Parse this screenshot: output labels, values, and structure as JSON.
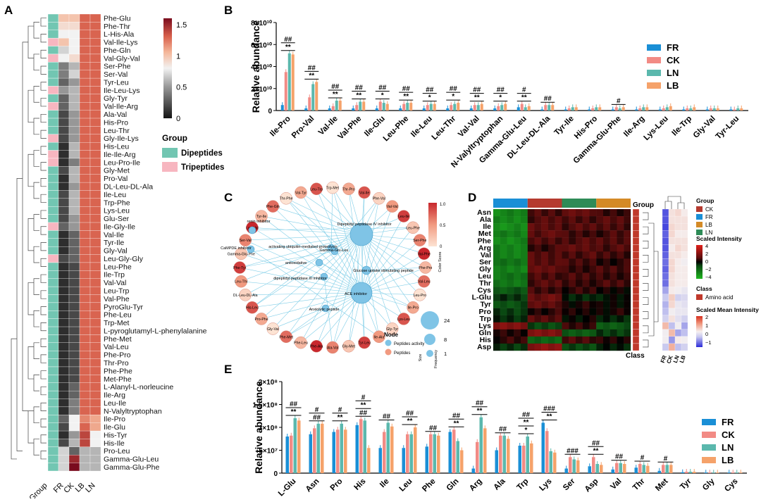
{
  "colors": {
    "FR": "#1a8fd6",
    "CK": "#f28b85",
    "LN": "#5bb8ad",
    "LB": "#f5a26a",
    "dipeptide": "#72c6b2",
    "tripeptide": "#f7b6c0",
    "amino_acid": "#c0392b"
  },
  "panelA": {
    "label": "A",
    "columns": [
      "Group",
      "FR",
      "CK",
      "LB",
      "LN"
    ],
    "rows": [
      "Phe-Glu",
      "Phe-Thr",
      "L-His-Ala",
      "Val-Ile-Lys",
      "Phe-Gln",
      "Val-Gly-Val",
      "Ser-Phe",
      "Ser-Val",
      "Tyr-Leu",
      "Ile-Leu-Lys",
      "Gly-Tyr",
      "Val-Ile-Arg",
      "Ala-Val",
      "His-Pro",
      "Leu-Thr",
      "Gly-Ile-Lys",
      "His-Leu",
      "Ile-Ile-Arg",
      "Leu-Pro-Ile",
      "Gly-Met",
      "Pro-Val",
      "DL-Leu-DL-Ala",
      "Ile-Leu",
      "Trp-Phe",
      "Lys-Leu",
      "Glu-Ser",
      "Ile-Gly-Ile",
      "Val-Ile",
      "Tyr-Ile",
      "Gly-Val",
      "Leu-Gly-Gly",
      "Leu-Phe",
      "Ile-Trp",
      "Val-Val",
      "Leu-Trp",
      "Val-Phe",
      "PyroGlu-Tyr",
      "Phe-Leu",
      "Trp-Met",
      "L-pyroglutamyl-L-phenylalanine",
      "Phe-Met",
      "Val-Leu",
      "Phe-Pro",
      "Thr-Pro",
      "Phe-Phe",
      "Met-Phe",
      "L-Alanyl-L-norleucine",
      "Ile-Arg",
      "Leu-Ile",
      "N-Valyltryptophan",
      "Ile-Pro",
      "Ile-Glu",
      "His-Tyr",
      "His-Ile",
      "Pro-Leu",
      "Gamma-Glu-Leu",
      "Gamma-Glu-Phe"
    ],
    "groups": [
      "D",
      "D",
      "D",
      "T",
      "D",
      "T",
      "D",
      "D",
      "D",
      "T",
      "D",
      "T",
      "D",
      "D",
      "D",
      "T",
      "D",
      "T",
      "T",
      "D",
      "D",
      "D",
      "D",
      "D",
      "D",
      "D",
      "T",
      "D",
      "D",
      "D",
      "T",
      "D",
      "D",
      "D",
      "D",
      "D",
      "D",
      "D",
      "D",
      "D",
      "D",
      "D",
      "D",
      "D",
      "D",
      "D",
      "D",
      "D",
      "D",
      "D",
      "D",
      "D",
      "D",
      "D",
      "D",
      "D",
      "D"
    ],
    "values": [
      [
        1.0,
        1.0,
        1.3,
        1.3
      ],
      [
        0.9,
        0.9,
        1.3,
        1.3
      ],
      [
        0.8,
        0.8,
        1.3,
        1.3
      ],
      [
        1.0,
        0.8,
        1.3,
        1.3
      ],
      [
        0.7,
        0.8,
        1.3,
        1.3
      ],
      [
        0.8,
        0.9,
        1.3,
        1.3
      ],
      [
        0.4,
        0.6,
        1.3,
        1.3
      ],
      [
        0.4,
        0.7,
        1.3,
        1.3
      ],
      [
        0.3,
        0.5,
        1.3,
        1.3
      ],
      [
        0.5,
        0.6,
        1.3,
        1.3
      ],
      [
        0.3,
        0.6,
        1.3,
        1.3
      ],
      [
        0.3,
        0.6,
        1.3,
        1.3
      ],
      [
        0.2,
        0.5,
        1.3,
        1.3
      ],
      [
        0.2,
        0.5,
        1.3,
        1.3
      ],
      [
        0.2,
        0.5,
        1.3,
        1.3
      ],
      [
        0.2,
        0.5,
        1.3,
        1.3
      ],
      [
        0.1,
        0.6,
        1.3,
        1.3
      ],
      [
        0.1,
        0.6,
        1.3,
        1.3
      ],
      [
        0.1,
        0.4,
        1.3,
        1.3
      ],
      [
        0.2,
        0.6,
        1.3,
        1.3
      ],
      [
        0.1,
        0.6,
        1.3,
        1.3
      ],
      [
        0.1,
        0.5,
        1.3,
        1.3
      ],
      [
        0.2,
        0.6,
        1.3,
        1.3
      ],
      [
        0.2,
        0.6,
        1.3,
        1.3
      ],
      [
        0.2,
        0.6,
        1.3,
        1.3
      ],
      [
        0.2,
        0.5,
        1.3,
        1.3
      ],
      [
        0.3,
        0.5,
        1.3,
        1.3
      ],
      [
        0.1,
        0.3,
        1.3,
        1.3
      ],
      [
        0.1,
        0.3,
        1.3,
        1.3
      ],
      [
        0.1,
        0.3,
        1.3,
        1.3
      ],
      [
        0.2,
        0.3,
        1.3,
        1.3
      ],
      [
        0.1,
        0.2,
        1.3,
        1.3
      ],
      [
        0.1,
        0.2,
        1.3,
        1.3
      ],
      [
        0.1,
        0.2,
        1.3,
        1.3
      ],
      [
        0.1,
        0.2,
        1.3,
        1.3
      ],
      [
        0.1,
        0.2,
        1.3,
        1.3
      ],
      [
        0.1,
        0.2,
        1.3,
        1.3
      ],
      [
        0.1,
        0.2,
        1.3,
        1.3
      ],
      [
        0.1,
        0.2,
        1.3,
        1.3
      ],
      [
        0.1,
        0.2,
        1.3,
        1.3
      ],
      [
        0.1,
        0.2,
        1.3,
        1.3
      ],
      [
        0.1,
        0.2,
        1.3,
        1.3
      ],
      [
        0.1,
        0.2,
        1.3,
        1.3
      ],
      [
        0.1,
        0.2,
        1.3,
        1.3
      ],
      [
        0.1,
        0.2,
        1.3,
        1.3
      ],
      [
        0.1,
        0.2,
        1.3,
        1.3
      ],
      [
        0.1,
        0.3,
        1.3,
        1.3
      ],
      [
        0.1,
        0.3,
        1.3,
        1.3
      ],
      [
        0.1,
        0.4,
        1.3,
        1.3
      ],
      [
        0.1,
        0.4,
        1.3,
        1.3
      ],
      [
        0.3,
        0.8,
        1.2,
        1.1
      ],
      [
        0.2,
        0.8,
        1.3,
        1.1
      ],
      [
        0.1,
        0.5,
        1.4,
        0.8
      ],
      [
        0.2,
        0.6,
        1.4,
        0.8
      ],
      [
        0.7,
        0.3,
        0.6,
        0.6
      ],
      [
        0.7,
        1.5,
        0.6,
        0.6
      ],
      [
        0.7,
        1.6,
        0.6,
        0.6
      ]
    ],
    "colorbar": {
      "ticks": [
        "1.5",
        "1",
        "0.5",
        "0"
      ],
      "range": [
        0,
        1.6
      ]
    },
    "legend_title": "Group",
    "legend_items": [
      "Dipeptides",
      "Tripeptides"
    ]
  },
  "chart_data": [
    {
      "type": "bar",
      "panel": "B",
      "ylabel": "Relative abundance",
      "yticks": [
        "0",
        "2×10¹⁰",
        "4×10¹⁰",
        "6×10¹⁰",
        "8×10¹⁰"
      ],
      "ylim": [
        0,
        80000000000.0
      ],
      "categories": [
        "Ile-Pro",
        "Pro-Val",
        "Val-Ile",
        "Val-Phe",
        "Ile-Glu",
        "Leu-Phe",
        "Ile-Leu",
        "Leu-Thr",
        "Val-Val",
        "N-Valyltryptophan",
        "Gamma-Glu-Leu",
        "DL-Leu-DL-Ala",
        "Tyr-Ile",
        "His-Pro",
        "Gamma-Glu-Phe",
        "Ile-Arg",
        "Lys-Leu",
        "Ile-Trp",
        "Gly-Val",
        "Tyr-Leu"
      ],
      "series": [
        {
          "name": "FR",
          "values": [
            0.5,
            0.2,
            0.2,
            0.2,
            0.2,
            0.2,
            0.2,
            0.2,
            0.2,
            0.2,
            0.3,
            0.1,
            0.1,
            0.1,
            0.1,
            0.1,
            0.1,
            0.1,
            0.1,
            0.1
          ]
        },
        {
          "name": "CK",
          "values": [
            3.5,
            1.2,
            0.4,
            0.5,
            0.8,
            0.6,
            0.5,
            0.5,
            0.5,
            0.4,
            0.6,
            0.5,
            0.2,
            0.2,
            0.3,
            0.2,
            0.2,
            0.2,
            0.2,
            0.1
          ]
        },
        {
          "name": "LN",
          "values": [
            5.2,
            2.4,
            0.9,
            0.8,
            0.7,
            0.7,
            0.6,
            0.6,
            0.5,
            0.5,
            0.3,
            0.5,
            0.3,
            0.3,
            0.2,
            0.3,
            0.3,
            0.2,
            0.2,
            0.2
          ]
        },
        {
          "name": "LB",
          "values": [
            5.1,
            2.6,
            0.9,
            0.8,
            0.6,
            0.7,
            0.6,
            0.7,
            0.6,
            0.6,
            0.4,
            0.5,
            0.3,
            0.3,
            0.3,
            0.3,
            0.4,
            0.3,
            0.2,
            0.2
          ]
        }
      ],
      "value_scale": "×10¹⁰",
      "annotations": [
        {
          "index": 0,
          "marks": [
            "##",
            "**"
          ]
        },
        {
          "index": 1,
          "marks": [
            "##",
            "**"
          ]
        },
        {
          "index": 2,
          "marks": [
            "##",
            "**"
          ]
        },
        {
          "index": 3,
          "marks": [
            "##",
            "**"
          ]
        },
        {
          "index": 4,
          "marks": [
            "##",
            "*"
          ]
        },
        {
          "index": 5,
          "marks": [
            "##",
            "**"
          ]
        },
        {
          "index": 6,
          "marks": [
            "##",
            "*"
          ]
        },
        {
          "index": 7,
          "marks": [
            "##",
            "*"
          ]
        },
        {
          "index": 8,
          "marks": [
            "##",
            "**"
          ]
        },
        {
          "index": 9,
          "marks": [
            "##",
            "*"
          ]
        },
        {
          "index": 10,
          "marks": [
            "#",
            "**"
          ]
        },
        {
          "index": 11,
          "marks": [
            "##"
          ]
        },
        {
          "index": 14,
          "marks": [
            "#"
          ]
        }
      ],
      "legend": [
        "FR",
        "CK",
        "LN",
        "LB"
      ]
    },
    {
      "type": "network",
      "panel": "C",
      "activity_nodes": [
        "Dipeptidyl peptidase IV inhibitor",
        "ACE inhibitor",
        "activating ubiquitin-mediated proteolysis",
        "Glucose uptake stimulating peptide",
        "dipeptidyl peptidase III inhibitor",
        "Gamma-Glu-Leu",
        "antioxidative",
        "Anxiolytic peptide",
        "renin inhibitor",
        "CaMPDE inhibitor"
      ],
      "peptide_nodes": [
        "Trp-Met",
        "Thr-Pro",
        "Val-Ile",
        "Phe-Val",
        "Val-Val",
        "Leu-Ile",
        "Leu-Phe",
        "Ser-Phe",
        "Val-Phe",
        "Phe-Pro",
        "Val-Leu",
        "Leu-Pro",
        "Ile-Pro",
        "Lys-Leu",
        "Gly-Tyr",
        "Ile-Ala",
        "Tyr-Leu",
        "Gly-Met",
        "Ala-Val",
        "Phe-Ala",
        "Phe-Leu",
        "Phe-Met",
        "Gly-Val",
        "Pro-Phe",
        "His-Leu",
        "DL-Leu-DL-Ala",
        "Leu-Thr",
        "Phe-Tyr",
        "Gamma-Glu-Phe",
        "Ser-Val",
        "Leu-Val",
        "Tyr-Ile",
        "Phe-Gln",
        "Thr-Phe",
        "Val-Tyr",
        "Leu-Trp"
      ],
      "color_score_label": "Color Score",
      "color_score_ticks": [
        "1.0",
        "0.5",
        "0"
      ],
      "size_legend": [
        "24",
        "8",
        "1"
      ],
      "size_label": "Size",
      "frequency_label": "Frequency",
      "node_legend_title": "Node",
      "node_legend_items": [
        "Peptides activity",
        "Peptides"
      ]
    },
    {
      "type": "heatmap",
      "panel": "D",
      "rows": [
        "Asn",
        "Ala",
        "Ile",
        "Met",
        "Phe",
        "Arg",
        "Val",
        "Ser",
        "Gly",
        "Leu",
        "Thr",
        "Cys",
        "L-Glu",
        "Tyr",
        "Pro",
        "Trp",
        "Lys",
        "Gln",
        "His",
        "Asp"
      ],
      "group_title": "Group",
      "groups": [
        "FR",
        "CK",
        "LN",
        "LB"
      ],
      "class_label": "Class",
      "scaled_intensity_title": "Scaled Intensity",
      "scaled_intensity_ticks": [
        "4",
        "2",
        "0",
        "−2",
        "−4"
      ],
      "class_title": "Class",
      "class_item": "Amino acid",
      "scaled_mean_title": "Scaled Mean Intensity",
      "scaled_mean_ticks": [
        "2",
        "1",
        "0",
        "−1"
      ],
      "legend_group_items": [
        "CK",
        "FR",
        "LB",
        "LN"
      ],
      "mean_columns": [
        "FR",
        "CK",
        "LN",
        "LB"
      ],
      "row_means": [
        [
          -1.2,
          0.4,
          0.5,
          0.3
        ],
        [
          -1.2,
          0.4,
          0.4,
          0.4
        ],
        [
          -1.3,
          0.5,
          0.4,
          0.4
        ],
        [
          -1.1,
          0.5,
          0.3,
          0.3
        ],
        [
          -1.2,
          0.4,
          0.4,
          0.4
        ],
        [
          -1.2,
          0.3,
          0.5,
          0.4
        ],
        [
          -1.1,
          0.4,
          0.4,
          0.3
        ],
        [
          -1.0,
          0.5,
          0.3,
          0.2
        ],
        [
          -1.1,
          0.5,
          0.3,
          0.3
        ],
        [
          -1.0,
          0.4,
          0.3,
          0.3
        ],
        [
          -1.0,
          0.4,
          0.3,
          0.3
        ],
        [
          -0.6,
          0.3,
          0.2,
          0.1
        ],
        [
          -0.3,
          0.6,
          -0.2,
          -0.1
        ],
        [
          -0.5,
          0.5,
          0.1,
          0.0
        ],
        [
          -0.4,
          0.2,
          0.1,
          0.1
        ],
        [
          -0.2,
          0.4,
          0.0,
          -0.2
        ],
        [
          0.8,
          -0.4,
          0.2,
          -0.6
        ],
        [
          0.2,
          0.8,
          -0.6,
          -0.4
        ],
        [
          0.2,
          -0.7,
          0.3,
          0.2
        ],
        [
          -0.3,
          0.9,
          -0.4,
          -0.2
        ]
      ]
    },
    {
      "type": "bar",
      "panel": "E",
      "ylabel": "Relative abundance",
      "yticks": [
        "0",
        "5×10⁷",
        "1×10⁸",
        "1.5×10⁸",
        "2×10⁸"
      ],
      "ylim": [
        0,
        200000000.0
      ],
      "categories": [
        "L-Glu",
        "Asn",
        "Pro",
        "His",
        "Ile",
        "Leu",
        "Phe",
        "Gln",
        "Arg",
        "Ala",
        "Trp",
        "Lys",
        "Ser",
        "Asp",
        "Val",
        "Thr",
        "Met",
        "Tyr",
        "Gly",
        "Cys"
      ],
      "series": [
        {
          "name": "FR",
          "values": [
            0.8,
            0.85,
            0.9,
            1.05,
            0.55,
            0.55,
            0.58,
            0.9,
            0.1,
            0.5,
            0.6,
            1.1,
            0.1,
            0.15,
            0.08,
            0.12,
            0.05,
            0.02,
            0.01,
            0.01
          ]
        },
        {
          "name": "CK",
          "values": [
            0.82,
            0.98,
            0.95,
            1.18,
            0.9,
            0.85,
            0.85,
            0.95,
            0.68,
            0.82,
            0.6,
            0.92,
            0.35,
            0.35,
            0.22,
            0.2,
            0.18,
            0.03,
            0.01,
            0.01
          ]
        },
        {
          "name": "LN",
          "values": [
            1.2,
            1.08,
            1.08,
            1.15,
            1.1,
            0.85,
            0.85,
            0.7,
            1.22,
            0.82,
            0.8,
            0.48,
            0.3,
            0.2,
            0.22,
            0.18,
            0.18,
            0.03,
            0.01,
            0.01
          ]
        },
        {
          "name": "LB",
          "values": [
            1.15,
            1.08,
            0.95,
            0.55,
            1.02,
            1.0,
            0.82,
            0.5,
            0.98,
            0.75,
            0.65,
            0.45,
            0.28,
            0.18,
            0.2,
            0.16,
            0.18,
            0.03,
            0.01,
            0.01
          ]
        }
      ],
      "value_scale": "×10⁸",
      "annotations": [
        {
          "index": 0,
          "marks": [
            "##",
            "**"
          ]
        },
        {
          "index": 1,
          "marks": [
            "#",
            "##"
          ]
        },
        {
          "index": 2,
          "marks": [
            "#",
            "**"
          ]
        },
        {
          "index": 3,
          "marks": [
            "#",
            "**",
            "##"
          ]
        },
        {
          "index": 4,
          "marks": [
            "##"
          ]
        },
        {
          "index": 5,
          "marks": [
            "##",
            "**"
          ]
        },
        {
          "index": 6,
          "marks": [
            "##"
          ]
        },
        {
          "index": 7,
          "marks": [
            "##",
            "**"
          ]
        },
        {
          "index": 8,
          "marks": [
            "##",
            "**"
          ]
        },
        {
          "index": 9,
          "marks": [
            "##"
          ]
        },
        {
          "index": 10,
          "marks": [
            "##",
            "**",
            "*"
          ]
        },
        {
          "index": 11,
          "marks": [
            "###",
            "**"
          ]
        },
        {
          "index": 12,
          "marks": [
            "###"
          ]
        },
        {
          "index": 13,
          "marks": [
            "##",
            "**"
          ]
        },
        {
          "index": 14,
          "marks": [
            "##"
          ]
        },
        {
          "index": 15,
          "marks": [
            "#"
          ]
        },
        {
          "index": 16,
          "marks": [
            "#"
          ]
        }
      ],
      "legend": [
        "FR",
        "CK",
        "LN",
        "LB"
      ]
    }
  ]
}
